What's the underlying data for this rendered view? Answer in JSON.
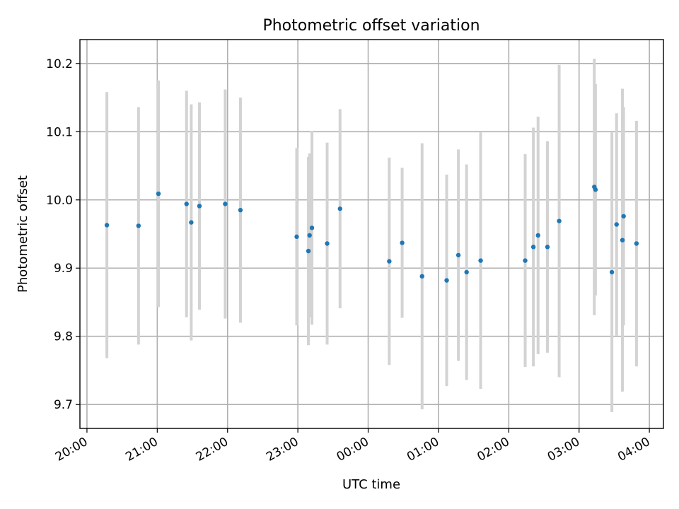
{
  "chart_data": {
    "type": "scatter",
    "title": "Photometric offset variation",
    "xlabel": "UTC time",
    "ylabel": "Photometric offset",
    "xlim": [
      "19:54",
      "04:12"
    ],
    "ylim": [
      9.665,
      10.235
    ],
    "grid": true,
    "x_tick_labels": [
      "20:00",
      "21:00",
      "22:00",
      "23:00",
      "00:00",
      "01:00",
      "02:00",
      "03:00",
      "04:00"
    ],
    "y_tick_labels": [
      "9.7",
      "9.8",
      "9.9",
      "10.0",
      "10.1",
      "10.2"
    ],
    "y_ticks": [
      9.7,
      9.8,
      9.9,
      10.0,
      10.1,
      10.2
    ],
    "colors": {
      "points": "#1f77b4",
      "errorbars": "#d3d3d3",
      "grid": "#b0b0b0"
    },
    "series": [
      {
        "marker": "point",
        "points": [
          {
            "x": "20:17",
            "y": 9.963,
            "err": 0.195
          },
          {
            "x": "20:44",
            "y": 9.962,
            "err": 0.174
          },
          {
            "x": "21:01",
            "y": 10.009,
            "err": 0.166
          },
          {
            "x": "21:25",
            "y": 9.994,
            "err": 0.166
          },
          {
            "x": "21:29",
            "y": 9.967,
            "err": 0.173
          },
          {
            "x": "21:36",
            "y": 9.991,
            "err": 0.152
          },
          {
            "x": "21:58",
            "y": 9.994,
            "err": 0.168
          },
          {
            "x": "22:11",
            "y": 9.985,
            "err": 0.165
          },
          {
            "x": "22:59",
            "y": 9.946,
            "err": 0.13
          },
          {
            "x": "23:09",
            "y": 9.925,
            "err": 0.138
          },
          {
            "x": "23:10",
            "y": 9.948,
            "err": 0.12
          },
          {
            "x": "23:12",
            "y": 9.959,
            "err": 0.142
          },
          {
            "x": "23:25",
            "y": 9.936,
            "err": 0.148
          },
          {
            "x": "23:36",
            "y": 9.987,
            "err": 0.146
          },
          {
            "x": "00:18",
            "y": 9.91,
            "err": 0.152
          },
          {
            "x": "00:29",
            "y": 9.937,
            "err": 0.11
          },
          {
            "x": "00:46",
            "y": 9.888,
            "err": 0.195
          },
          {
            "x": "01:07",
            "y": 9.882,
            "err": 0.155
          },
          {
            "x": "01:17",
            "y": 9.919,
            "err": 0.155
          },
          {
            "x": "01:24",
            "y": 9.894,
            "err": 0.158
          },
          {
            "x": "01:36",
            "y": 9.911,
            "err": 0.188
          },
          {
            "x": "02:14",
            "y": 9.911,
            "err": 0.156
          },
          {
            "x": "02:21",
            "y": 9.931,
            "err": 0.175
          },
          {
            "x": "02:25",
            "y": 9.948,
            "err": 0.174
          },
          {
            "x": "02:33",
            "y": 9.931,
            "err": 0.155
          },
          {
            "x": "02:43",
            "y": 9.969,
            "err": 0.229
          },
          {
            "x": "03:13",
            "y": 10.019,
            "err": 0.188
          },
          {
            "x": "03:14",
            "y": 10.015,
            "err": 0.155
          },
          {
            "x": "03:28",
            "y": 9.894,
            "err": 0.205
          },
          {
            "x": "03:32",
            "y": 9.964,
            "err": 0.163
          },
          {
            "x": "03:37",
            "y": 9.941,
            "err": 0.222
          },
          {
            "x": "03:38",
            "y": 9.976,
            "err": 0.16
          },
          {
            "x": "03:49",
            "y": 9.936,
            "err": 0.18
          }
        ]
      }
    ]
  }
}
